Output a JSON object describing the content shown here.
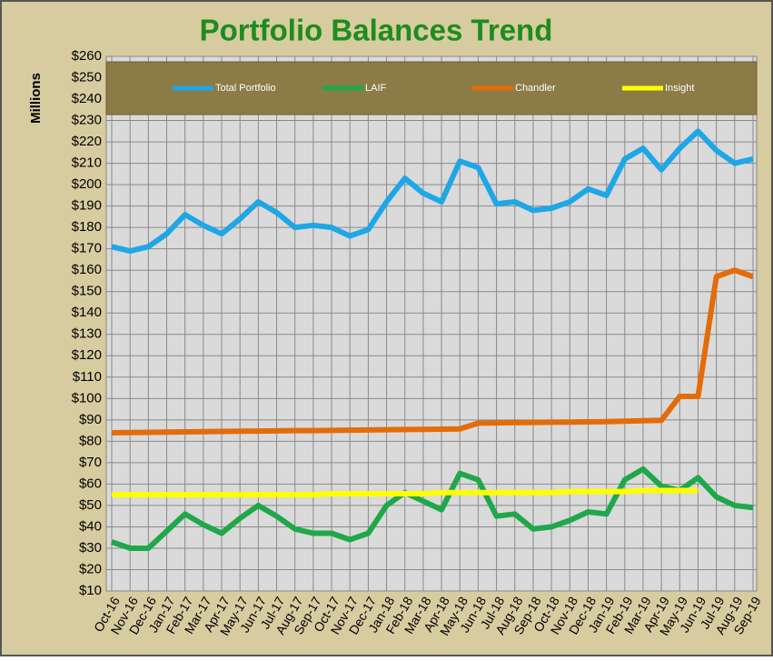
{
  "chart_data": {
    "type": "line",
    "title": "Portfolio Balances Trend",
    "y_label": "Millions",
    "categories": [
      "Oct-16",
      "Nov-16",
      "Dec-16",
      "Jan-17",
      "Feb-17",
      "Mar-17",
      "Apr-17",
      "May-17",
      "Jun-17",
      "Jul-17",
      "Aug-17",
      "Sep-17",
      "Oct-17",
      "Nov-17",
      "Dec-17",
      "Jan-18",
      "Feb-18",
      "Mar-18",
      "Apr-18",
      "May-18",
      "Jun-18",
      "Jul-18",
      "Aug-18",
      "Sep-18",
      "Oct-18",
      "Nov-18",
      "Dec-18",
      "Jan-19",
      "Feb-19",
      "Mar-19",
      "Apr-19",
      "May-19",
      "Jun-19",
      "Jul-19",
      "Aug-19",
      "Sep-19"
    ],
    "series": [
      {
        "name": "Total Portfolio",
        "color": "#1ea7e6",
        "values": [
          171,
          169,
          171,
          177,
          186,
          181,
          177,
          184,
          192,
          187,
          180,
          181,
          180,
          176,
          179,
          192,
          203,
          196,
          192,
          211,
          208,
          191,
          192,
          188,
          189,
          192,
          198,
          195,
          212,
          217,
          207,
          217,
          225,
          216,
          210,
          212
        ]
      },
      {
        "name": "LAIF",
        "color": "#1fa84a",
        "values": [
          33,
          30,
          30,
          38,
          46,
          41,
          37,
          44,
          50,
          45,
          39,
          37,
          37,
          34,
          37,
          50,
          56,
          52,
          48,
          65,
          62,
          45,
          46,
          39,
          40,
          43,
          47,
          46,
          62,
          67,
          59,
          57,
          63,
          54,
          50,
          49
        ]
      },
      {
        "name": "Chandler",
        "color": "#e36c0a",
        "values": [
          84,
          84.1,
          84.2,
          84.3,
          84.4,
          84.5,
          84.6,
          84.7,
          84.8,
          84.9,
          85,
          85,
          85.1,
          85.2,
          85.3,
          85.4,
          85.5,
          85.6,
          85.7,
          85.8,
          88.5,
          88.6,
          88.7,
          88.8,
          88.9,
          89,
          89.1,
          89.2,
          89.4,
          89.6,
          89.8,
          101,
          101,
          157,
          160,
          157
        ]
      },
      {
        "name": "Insight",
        "color": "#ffff00",
        "values": [
          55,
          55,
          55,
          55,
          55,
          55,
          55,
          55,
          55,
          55,
          55,
          55,
          55.5,
          55.5,
          55.5,
          55.5,
          55.5,
          55.5,
          56,
          56,
          56,
          56,
          56,
          56,
          56,
          56.5,
          56.5,
          56.5,
          56.5,
          57,
          57,
          57,
          57,
          null,
          null,
          null
        ]
      }
    ],
    "ylim": [
      10,
      260
    ],
    "yticks": [
      {
        "value": 10,
        "label": "$10"
      },
      {
        "value": 20,
        "label": "$20"
      },
      {
        "value": 30,
        "label": "$30"
      },
      {
        "value": 40,
        "label": "$40"
      },
      {
        "value": 50,
        "label": "$50"
      },
      {
        "value": 60,
        "label": "$60"
      },
      {
        "value": 70,
        "label": "$70"
      },
      {
        "value": 80,
        "label": "$80"
      },
      {
        "value": 90,
        "label": "$90"
      },
      {
        "value": 100,
        "label": "$100"
      },
      {
        "value": 110,
        "label": "$110"
      },
      {
        "value": 120,
        "label": "$120"
      },
      {
        "value": 130,
        "label": "$130"
      },
      {
        "value": 140,
        "label": "$140"
      },
      {
        "value": 150,
        "label": "$150"
      },
      {
        "value": 160,
        "label": "$160"
      },
      {
        "value": 170,
        "label": "$170"
      },
      {
        "value": 180,
        "label": "$180"
      },
      {
        "value": 190,
        "label": "$190"
      },
      {
        "value": 200,
        "label": "$200"
      },
      {
        "value": 210,
        "label": "$210"
      },
      {
        "value": 220,
        "label": "$220"
      },
      {
        "value": 230,
        "label": "$230"
      },
      {
        "value": 240,
        "label": "$240"
      },
      {
        "value": 250,
        "label": "$250"
      },
      {
        "value": 260,
        "label": "$260"
      }
    ],
    "grid": true
  }
}
